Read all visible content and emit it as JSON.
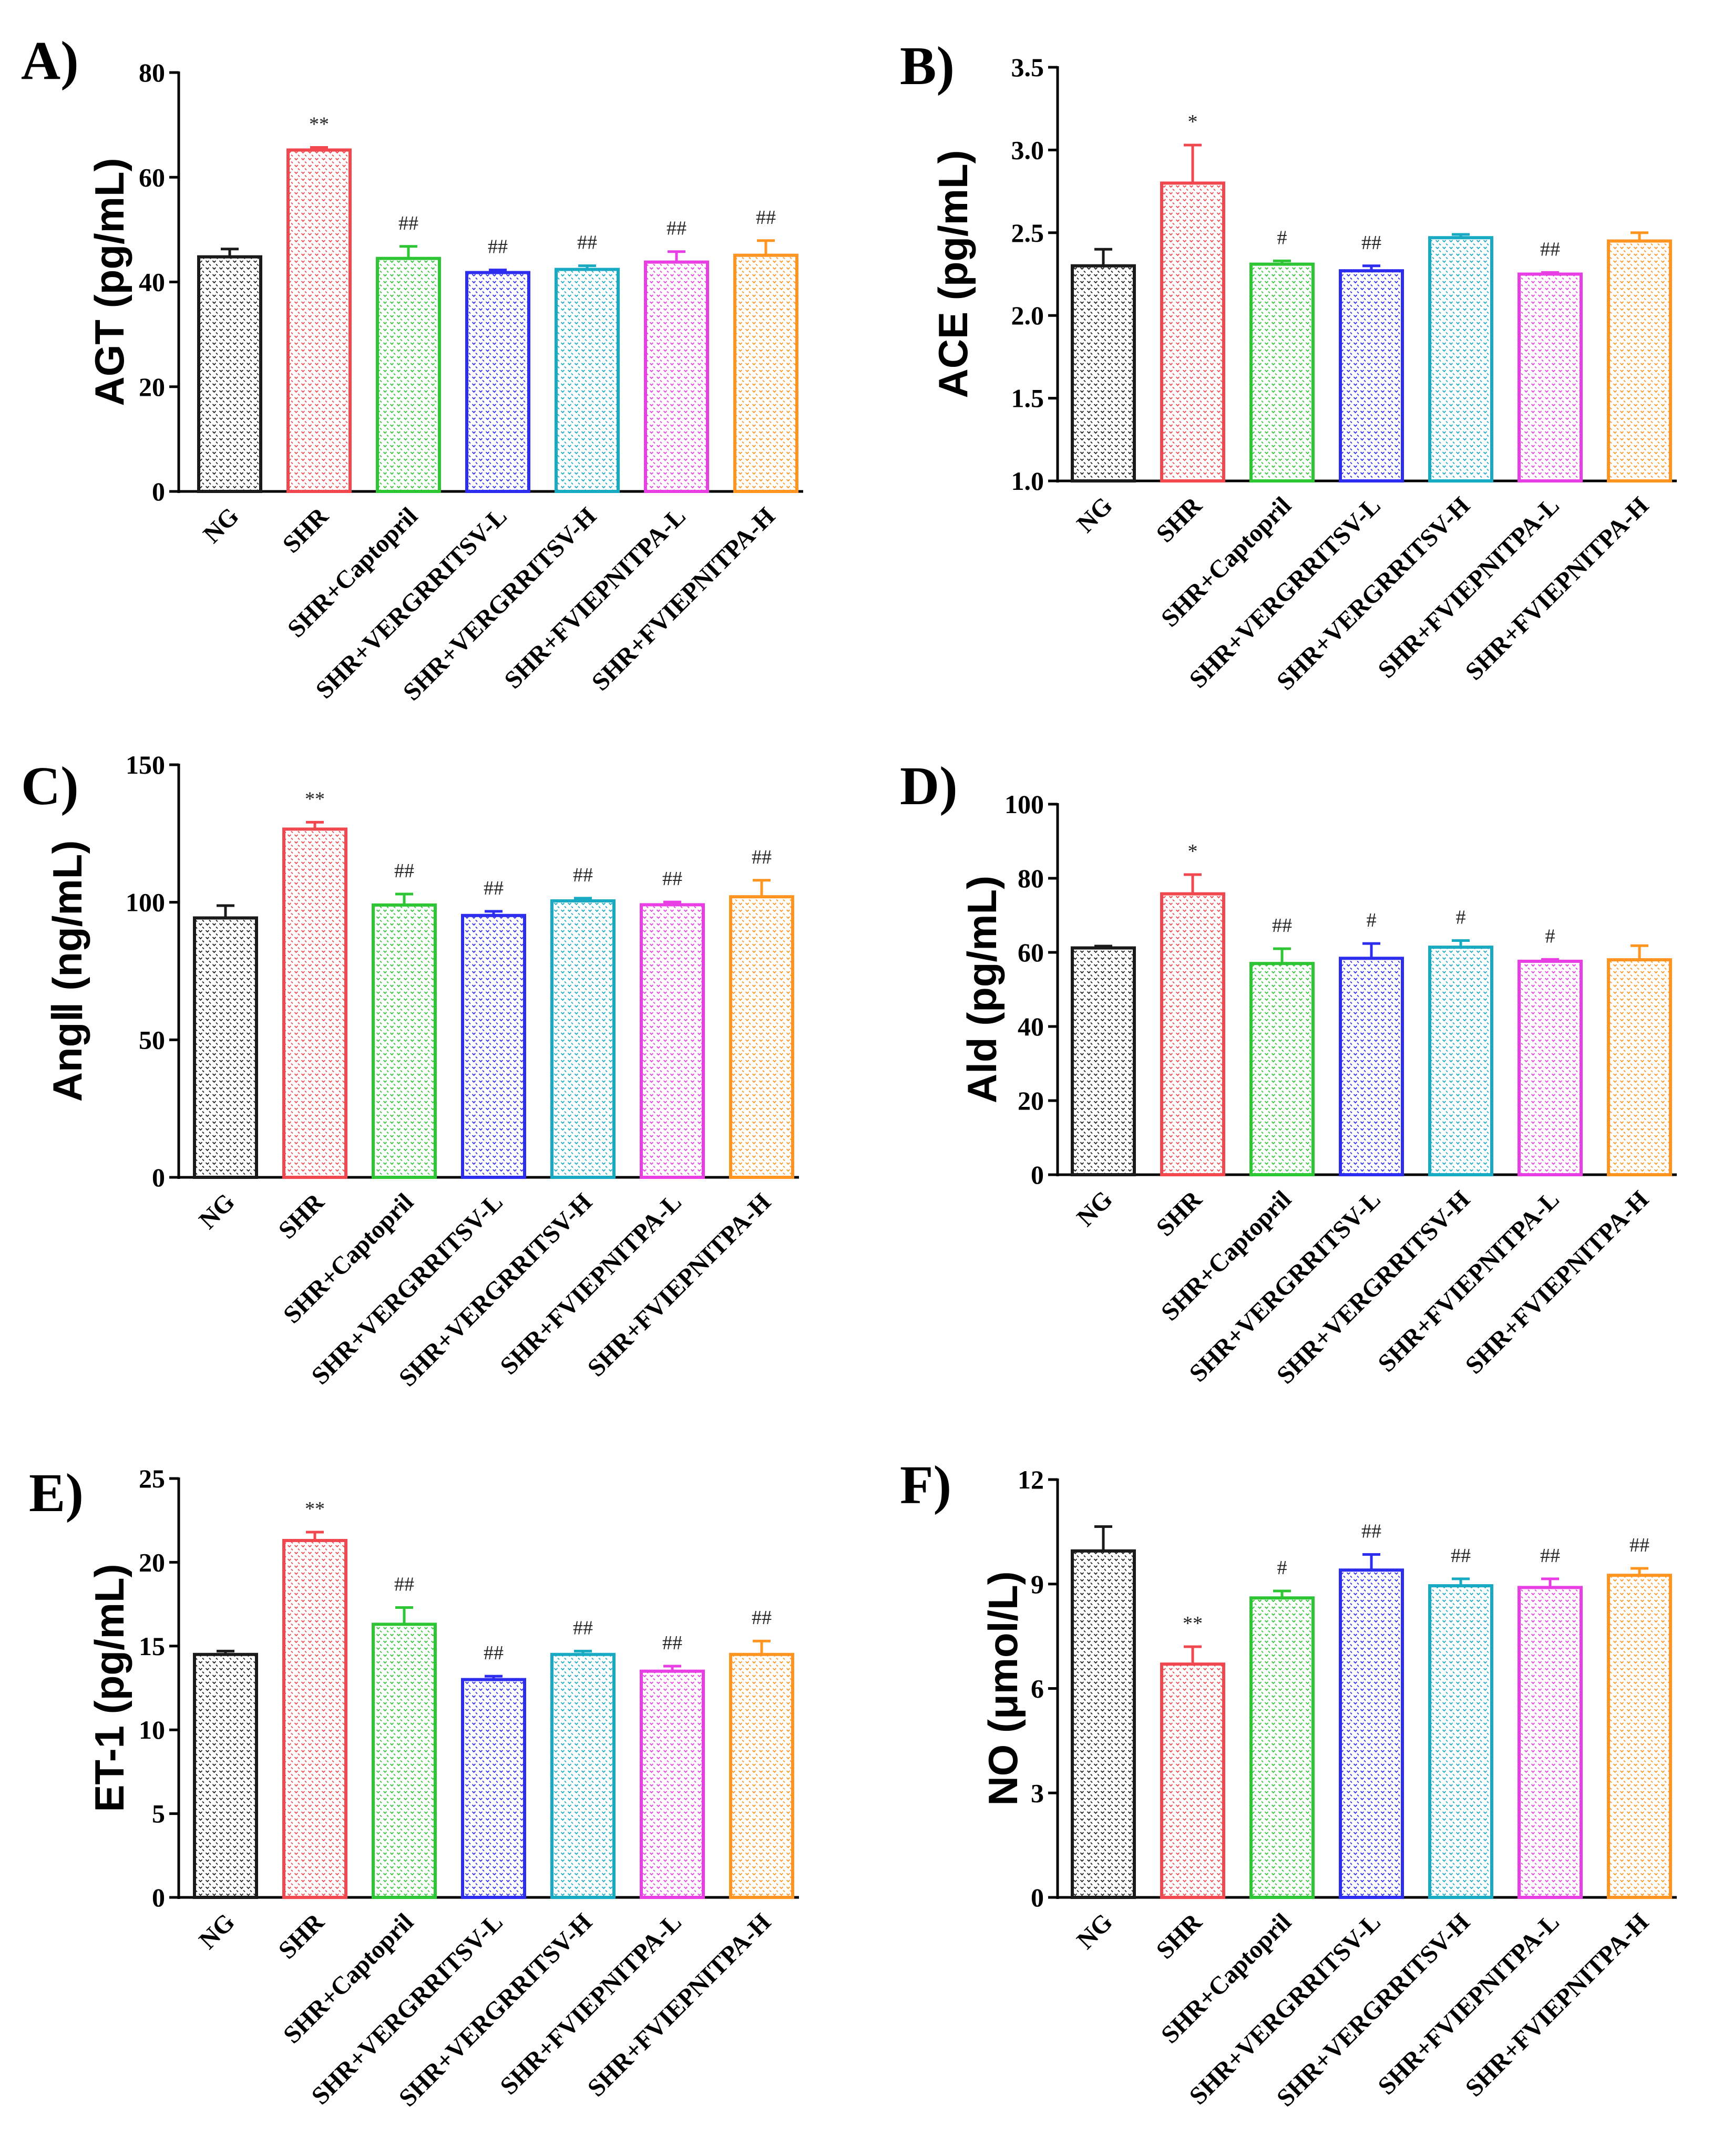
{
  "chart_data": [
    {
      "panel": "A)",
      "type": "bar",
      "ylabel": "AGT (pg/mL)",
      "ylim": [
        0,
        80
      ],
      "yticks": [
        "0",
        "20",
        "40",
        "60",
        "80"
      ],
      "categories": [
        "NG",
        "SHR",
        "SHR+Captopril",
        "SHR+VERGRRITSV-L",
        "SHR+VERGRRITSV-H",
        "SHR+FVIEPNITPA-L",
        "SHR+FVIEPNITPA-H"
      ],
      "values": [
        44.8,
        65.2,
        44.5,
        41.8,
        42.4,
        43.8,
        45.1
      ],
      "errors": [
        1.5,
        0.5,
        2.3,
        0.5,
        0.7,
        2.0,
        2.8
      ],
      "annotations": [
        "",
        "**",
        "##",
        "##",
        "##",
        "##",
        "##"
      ]
    },
    {
      "panel": "B)",
      "type": "bar",
      "ylabel": "ACE (pg/mL)",
      "ylim": [
        1.0,
        3.5
      ],
      "yticks": [
        "1.0",
        "1.5",
        "2.0",
        "2.5",
        "3.0",
        "3.5"
      ],
      "categories": [
        "NG",
        "SHR",
        "SHR+Captopril",
        "SHR+VERGRRITSV-L",
        "SHR+VERGRRITSV-H",
        "SHR+FVIEPNITPA-L",
        "SHR+FVIEPNITPA-H"
      ],
      "values": [
        2.3,
        2.8,
        2.31,
        2.27,
        2.47,
        2.25,
        2.45
      ],
      "errors": [
        0.1,
        0.23,
        0.02,
        0.03,
        0.02,
        0.01,
        0.05
      ],
      "annotations": [
        "",
        "*",
        "#",
        "##",
        "",
        "##",
        ""
      ]
    },
    {
      "panel": "C)",
      "type": "bar",
      "ylabel": "AngⅡ (ng/mL)",
      "ylim": [
        0,
        150
      ],
      "yticks": [
        "0",
        "50",
        "100",
        "150"
      ],
      "categories": [
        "NG",
        "SHR",
        "SHR+Captopril",
        "SHR+VERGRRITSV-L",
        "SHR+VERGRRITSV-H",
        "SHR+FVIEPNITPA-L",
        "SHR+FVIEPNITPA-H"
      ],
      "values": [
        94.3,
        126.6,
        99.0,
        95.2,
        100.5,
        99.1,
        102.0
      ],
      "errors": [
        4.5,
        2.5,
        4.0,
        1.5,
        1.0,
        1.0,
        6.0
      ],
      "annotations": [
        "",
        "**",
        "##",
        "##",
        "##",
        "##",
        "##"
      ]
    },
    {
      "panel": "D)",
      "type": "bar",
      "ylabel": "Ald (pg/mL)",
      "ylim": [
        0,
        100
      ],
      "yticks": [
        "0",
        "20",
        "40",
        "60",
        "80",
        "100"
      ],
      "categories": [
        "NG",
        "SHR",
        "SHR+Captopril",
        "SHR+VERGRRITSV-L",
        "SHR+VERGRRITSV-H",
        "SHR+FVIEPNITPA-L",
        "SHR+FVIEPNITPA-H"
      ],
      "values": [
        61.2,
        75.8,
        57.0,
        58.4,
        61.4,
        57.6,
        58.0
      ],
      "errors": [
        0.5,
        5.2,
        4.0,
        4.0,
        1.8,
        0.5,
        3.8
      ],
      "annotations": [
        "",
        "*",
        "##",
        "#",
        "#",
        "#",
        ""
      ]
    },
    {
      "panel": "E)",
      "type": "bar",
      "ylabel": "ET-1 (pg/mL)",
      "ylim": [
        0,
        25
      ],
      "yticks": [
        "0",
        "5",
        "10",
        "15",
        "20",
        "25"
      ],
      "categories": [
        "NG",
        "SHR",
        "SHR+Captopril",
        "SHR+VERGRRITSV-L",
        "SHR+VERGRRITSV-H",
        "SHR+FVIEPNITPA-L",
        "SHR+FVIEPNITPA-H"
      ],
      "values": [
        14.5,
        21.3,
        16.3,
        13.0,
        14.5,
        13.5,
        14.5
      ],
      "errors": [
        0.2,
        0.5,
        1.0,
        0.2,
        0.2,
        0.3,
        0.8
      ],
      "annotations": [
        "",
        "**",
        "##",
        "##",
        "##",
        "##",
        "##"
      ]
    },
    {
      "panel": "F)",
      "type": "bar",
      "ylabel": "NO (μmol/L)",
      "ylim": [
        0,
        12
      ],
      "yticks": [
        "0",
        "3",
        "6",
        "9",
        "12"
      ],
      "categories": [
        "NG",
        "SHR",
        "SHR+Captopril",
        "SHR+VERGRRITSV-L",
        "SHR+VERGRRITSV-H",
        "SHR+FVIEPNITPA-L",
        "SHR+FVIEPNITPA-H"
      ],
      "values": [
        9.95,
        6.7,
        8.6,
        9.4,
        8.95,
        8.9,
        9.25
      ],
      "errors": [
        0.7,
        0.5,
        0.2,
        0.45,
        0.2,
        0.25,
        0.2
      ],
      "annotations": [
        "",
        "**",
        "#",
        "##",
        "##",
        "##",
        "##"
      ]
    }
  ],
  "colors": [
    "#1a1a1a",
    "#f0484e",
    "#2ec534",
    "#2d2df0",
    "#18aac2",
    "#e83ee4",
    "#ff9420"
  ]
}
